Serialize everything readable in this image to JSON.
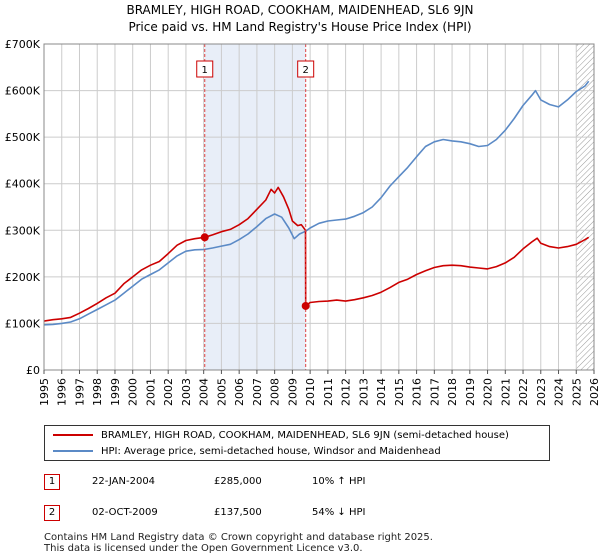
{
  "title_line1": "BRAMLEY, HIGH ROAD, COOKHAM, MAIDENHEAD, SL6 9JN",
  "title_line2": "Price paid vs. HM Land Registry's House Price Index (HPI)",
  "colors": {
    "property": "#cc0000",
    "hpi": "#5b8ac6",
    "shade": "#e8eef8",
    "grid": "#cccccc"
  },
  "chart_data": {
    "type": "line",
    "xlim": [
      1995,
      2026
    ],
    "ylim": [
      0,
      700000
    ],
    "yticks": [
      0,
      100000,
      200000,
      300000,
      400000,
      500000,
      600000,
      700000
    ],
    "ytick_labels": [
      "£0",
      "£100K",
      "£200K",
      "£300K",
      "£400K",
      "£500K",
      "£600K",
      "£700K"
    ],
    "xticks": [
      "1995",
      "1996",
      "1997",
      "1998",
      "1999",
      "2000",
      "2001",
      "2002",
      "2003",
      "2004",
      "2005",
      "2006",
      "2007",
      "2008",
      "2009",
      "2010",
      "2011",
      "2012",
      "2013",
      "2014",
      "2015",
      "2016",
      "2017",
      "2018",
      "2019",
      "2020",
      "2021",
      "2022",
      "2023",
      "2024",
      "2025",
      "2026"
    ],
    "shaded_range": [
      2004.06,
      2009.75
    ],
    "hatch_from": 2025.0,
    "series": [
      {
        "name": "BRAMLEY, HIGH ROAD, COOKHAM, MAIDENHEAD, SL6 9JN (semi-detached house)",
        "color": "#cc0000",
        "points": [
          [
            1995,
            105000
          ],
          [
            1995.5,
            108000
          ],
          [
            1996,
            110000
          ],
          [
            1996.5,
            113000
          ],
          [
            1997,
            122000
          ],
          [
            1997.5,
            132000
          ],
          [
            1998,
            143000
          ],
          [
            1998.5,
            155000
          ],
          [
            1999,
            165000
          ],
          [
            1999.5,
            185000
          ],
          [
            2000,
            200000
          ],
          [
            2000.5,
            215000
          ],
          [
            2001,
            225000
          ],
          [
            2001.5,
            233000
          ],
          [
            2002,
            250000
          ],
          [
            2002.5,
            268000
          ],
          [
            2003,
            278000
          ],
          [
            2003.5,
            282000
          ],
          [
            2004.06,
            285000
          ],
          [
            2004.5,
            290000
          ],
          [
            2005,
            297000
          ],
          [
            2005.5,
            302000
          ],
          [
            2006,
            312000
          ],
          [
            2006.5,
            325000
          ],
          [
            2007,
            345000
          ],
          [
            2007.5,
            365000
          ],
          [
            2007.8,
            388000
          ],
          [
            2008,
            380000
          ],
          [
            2008.2,
            392000
          ],
          [
            2008.5,
            372000
          ],
          [
            2008.8,
            345000
          ],
          [
            2009,
            320000
          ],
          [
            2009.3,
            310000
          ],
          [
            2009.5,
            312000
          ],
          [
            2009.74,
            300000
          ],
          [
            2009.75,
            137500
          ],
          [
            2010,
            145000
          ],
          [
            2010.5,
            147000
          ],
          [
            2011,
            148000
          ],
          [
            2011.5,
            150000
          ],
          [
            2012,
            148000
          ],
          [
            2012.5,
            151000
          ],
          [
            2013,
            155000
          ],
          [
            2013.5,
            160000
          ],
          [
            2014,
            167000
          ],
          [
            2014.5,
            177000
          ],
          [
            2015,
            188000
          ],
          [
            2015.5,
            195000
          ],
          [
            2016,
            205000
          ],
          [
            2016.5,
            213000
          ],
          [
            2017,
            220000
          ],
          [
            2017.5,
            224000
          ],
          [
            2018,
            225000
          ],
          [
            2018.5,
            224000
          ],
          [
            2019,
            221000
          ],
          [
            2019.5,
            219000
          ],
          [
            2020,
            217000
          ],
          [
            2020.5,
            222000
          ],
          [
            2021,
            230000
          ],
          [
            2021.5,
            242000
          ],
          [
            2022,
            260000
          ],
          [
            2022.5,
            275000
          ],
          [
            2022.8,
            283000
          ],
          [
            2023,
            272000
          ],
          [
            2023.5,
            265000
          ],
          [
            2024,
            262000
          ],
          [
            2024.5,
            265000
          ],
          [
            2025,
            270000
          ],
          [
            2025.5,
            280000
          ],
          [
            2025.7,
            285000
          ]
        ]
      },
      {
        "name": "HPI: Average price, semi-detached house, Windsor and Maidenhead",
        "color": "#5b8ac6",
        "points": [
          [
            1995,
            97000
          ],
          [
            1995.5,
            98000
          ],
          [
            1996,
            100000
          ],
          [
            1996.5,
            103000
          ],
          [
            1997,
            110000
          ],
          [
            1997.5,
            120000
          ],
          [
            1998,
            130000
          ],
          [
            1998.5,
            140000
          ],
          [
            1999,
            150000
          ],
          [
            1999.5,
            165000
          ],
          [
            2000,
            180000
          ],
          [
            2000.5,
            195000
          ],
          [
            2001,
            205000
          ],
          [
            2001.5,
            215000
          ],
          [
            2002,
            230000
          ],
          [
            2002.5,
            245000
          ],
          [
            2003,
            255000
          ],
          [
            2003.5,
            258000
          ],
          [
            2004.06,
            259000
          ],
          [
            2004.5,
            262000
          ],
          [
            2005,
            266000
          ],
          [
            2005.5,
            270000
          ],
          [
            2006,
            280000
          ],
          [
            2006.5,
            292000
          ],
          [
            2007,
            308000
          ],
          [
            2007.5,
            325000
          ],
          [
            2008,
            335000
          ],
          [
            2008.4,
            328000
          ],
          [
            2008.8,
            305000
          ],
          [
            2009.1,
            282000
          ],
          [
            2009.4,
            292000
          ],
          [
            2009.75,
            298000
          ],
          [
            2010,
            305000
          ],
          [
            2010.5,
            315000
          ],
          [
            2011,
            320000
          ],
          [
            2011.5,
            322000
          ],
          [
            2012,
            324000
          ],
          [
            2012.5,
            330000
          ],
          [
            2013,
            338000
          ],
          [
            2013.5,
            350000
          ],
          [
            2014,
            370000
          ],
          [
            2014.5,
            395000
          ],
          [
            2015,
            415000
          ],
          [
            2015.5,
            435000
          ],
          [
            2016,
            458000
          ],
          [
            2016.5,
            480000
          ],
          [
            2017,
            490000
          ],
          [
            2017.5,
            495000
          ],
          [
            2018,
            492000
          ],
          [
            2018.5,
            490000
          ],
          [
            2019,
            486000
          ],
          [
            2019.5,
            480000
          ],
          [
            2020,
            482000
          ],
          [
            2020.5,
            495000
          ],
          [
            2021,
            515000
          ],
          [
            2021.5,
            540000
          ],
          [
            2022,
            568000
          ],
          [
            2022.5,
            590000
          ],
          [
            2022.7,
            600000
          ],
          [
            2023,
            580000
          ],
          [
            2023.5,
            570000
          ],
          [
            2024,
            565000
          ],
          [
            2024.5,
            580000
          ],
          [
            2025,
            598000
          ],
          [
            2025.5,
            610000
          ],
          [
            2025.7,
            620000
          ]
        ]
      }
    ],
    "markers": [
      {
        "label": "1",
        "x": 2004.06,
        "y": 285000
      },
      {
        "label": "2",
        "x": 2009.75,
        "y": 137500
      }
    ]
  },
  "legend": {
    "property_label": "BRAMLEY, HIGH ROAD, COOKHAM, MAIDENHEAD, SL6 9JN (semi-detached house)",
    "hpi_label": "HPI: Average price, semi-detached house, Windsor and Maidenhead"
  },
  "sales": [
    {
      "num": "1",
      "date": "22-JAN-2004",
      "price": "£285,000",
      "hpi": "10% ↑ HPI"
    },
    {
      "num": "2",
      "date": "02-OCT-2009",
      "price": "£137,500",
      "hpi": "54% ↓ HPI"
    }
  ],
  "footer_line1": "Contains HM Land Registry data © Crown copyright and database right 2025.",
  "footer_line2": "This data is licensed under the Open Government Licence v3.0."
}
